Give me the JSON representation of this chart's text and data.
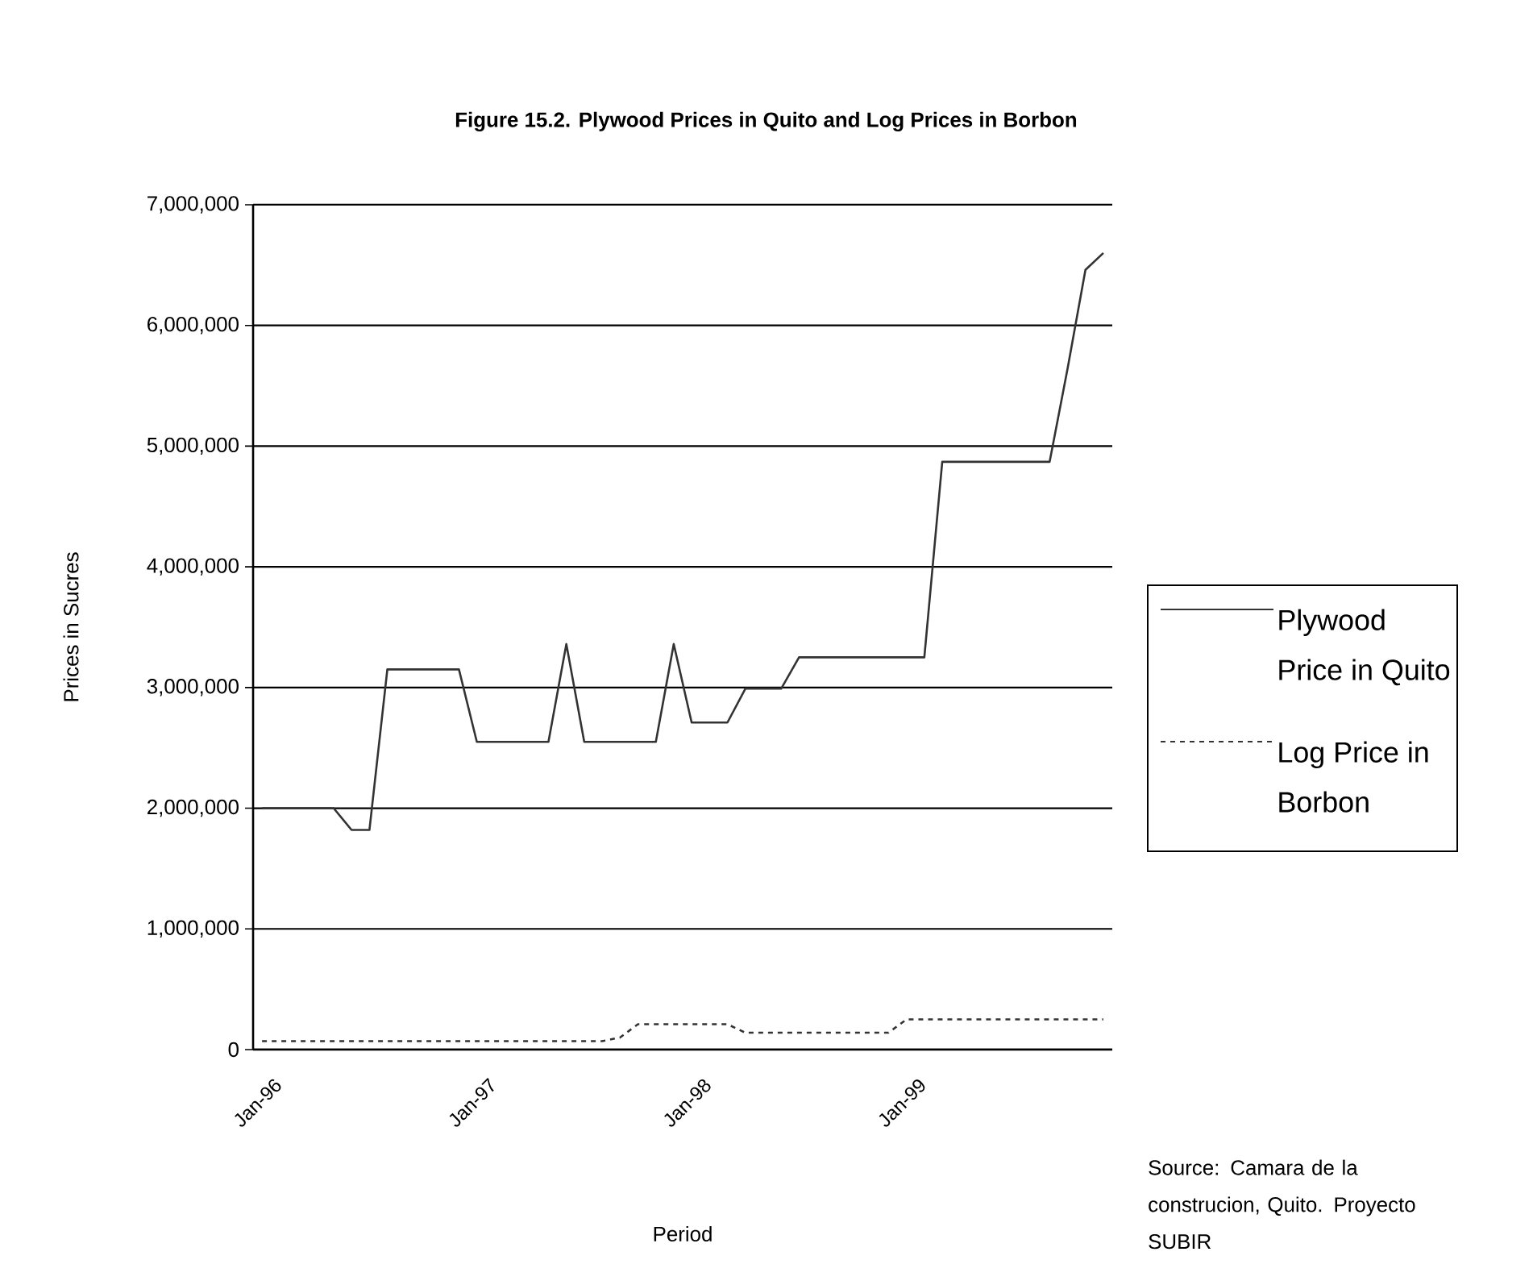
{
  "chart_data": {
    "type": "line",
    "title": "Figure 15.2. Plywood Prices in Quito and Log Prices in Borbon",
    "xlabel": "Period",
    "ylabel": "Prices in Sucres",
    "categories": [
      "Jan-96",
      null,
      null,
      null,
      null,
      null,
      null,
      null,
      null,
      null,
      null,
      null,
      "Jan-97",
      null,
      null,
      null,
      null,
      null,
      null,
      null,
      null,
      null,
      null,
      null,
      "Jan-98",
      null,
      null,
      null,
      null,
      null,
      null,
      null,
      null,
      null,
      null,
      null,
      "Jan-99",
      null,
      null,
      null,
      null,
      null,
      null,
      null,
      null,
      null,
      null,
      null
    ],
    "series": [
      {
        "name": "Plywood Price in Quito",
        "color": "#333333",
        "line_style": "solid",
        "values": [
          2000000,
          2000000,
          2000000,
          2000000,
          2000000,
          1820000,
          1820000,
          3150000,
          3150000,
          3150000,
          3150000,
          3150000,
          2550000,
          2550000,
          2550000,
          2550000,
          2550000,
          3360000,
          2550000,
          2550000,
          2550000,
          2550000,
          2550000,
          3360000,
          2710000,
          2710000,
          2710000,
          2990000,
          2990000,
          2990000,
          3250000,
          3250000,
          3250000,
          3250000,
          3250000,
          3250000,
          3250000,
          3250000,
          4870000,
          4870000,
          4870000,
          4870000,
          4870000,
          4870000,
          4870000,
          5640000,
          6460000,
          6600000
        ]
      },
      {
        "name": "Log Price in Borbon",
        "color": "#333333",
        "line_style": "dashed",
        "values": [
          70000,
          70000,
          70000,
          70000,
          70000,
          70000,
          70000,
          70000,
          70000,
          70000,
          70000,
          70000,
          70000,
          70000,
          70000,
          70000,
          70000,
          70000,
          70000,
          70000,
          100000,
          210000,
          210000,
          210000,
          210000,
          210000,
          210000,
          140000,
          140000,
          140000,
          140000,
          140000,
          140000,
          140000,
          140000,
          140000,
          250000,
          250000,
          250000,
          250000,
          250000,
          250000,
          250000,
          250000,
          250000,
          250000,
          250000,
          250000
        ]
      }
    ],
    "ylim": [
      0,
      7000000
    ],
    "yticks": [
      {
        "value": 0,
        "label": "0"
      },
      {
        "value": 1000000,
        "label": "1,000,000"
      },
      {
        "value": 2000000,
        "label": "2,000,000"
      },
      {
        "value": 3000000,
        "label": "3,000,000"
      },
      {
        "value": 4000000,
        "label": "4,000,000"
      },
      {
        "value": 5000000,
        "label": "5,000,000"
      },
      {
        "value": 6000000,
        "label": "6,000,000"
      },
      {
        "value": 7000000,
        "label": "7,000,000"
      }
    ],
    "grid": "y",
    "legend": "right",
    "marker": "none",
    "annotations": [
      "Source: Camara de la construcion, Quito. Proyecto SUBIR"
    ]
  }
}
